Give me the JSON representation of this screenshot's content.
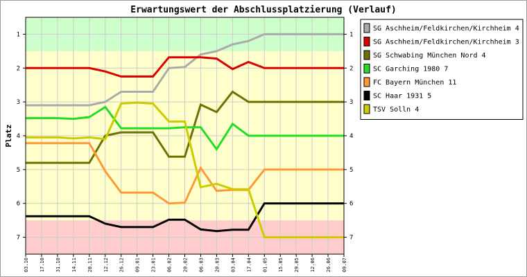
{
  "chart_data": {
    "type": "line",
    "title": "Erwartungswert der Abschlussplatzierung (Verlauf)",
    "xlabel": "",
    "ylabel": "Platz",
    "ylim": [
      0.5,
      7.5
    ],
    "y_inverted": true,
    "y_ticks": [
      "1",
      "2",
      "3",
      "4",
      "5",
      "6",
      "7"
    ],
    "grid": true,
    "legend_position": "right",
    "x": [
      "03.10",
      "17.10",
      "31.10",
      "14.11",
      "28.11",
      "12.12",
      "26.12",
      "09.01",
      "23.01",
      "06.02",
      "20.02",
      "06.03",
      "20.03",
      "03.04",
      "17.04",
      "01.05",
      "15.05",
      "29.05",
      "12.06",
      "26.06",
      "09.07"
    ],
    "bands": [
      {
        "from": 0.5,
        "to": 1.5,
        "color": "#ccffcc"
      },
      {
        "from": 1.5,
        "to": 6.5,
        "color": "#ffffcc"
      },
      {
        "from": 6.5,
        "to": 7.5,
        "color": "#ffcccc"
      }
    ],
    "series": [
      {
        "name": "SG Aschheim/Feldkirchen/Kirchheim 4",
        "color": "#aaaaaa",
        "points": [
          [
            0,
            3.1
          ],
          [
            4,
            3.1
          ],
          [
            5,
            3.0
          ],
          [
            6,
            2.7
          ],
          [
            8,
            2.7
          ],
          [
            9,
            2.0
          ],
          [
            10,
            1.97
          ],
          [
            11,
            1.6
          ],
          [
            12,
            1.5
          ],
          [
            13,
            1.3
          ],
          [
            14,
            1.2
          ],
          [
            15,
            1.0
          ],
          [
            20,
            1.0
          ]
        ]
      },
      {
        "name": "SG Aschheim/Feldkirchen/Kirchheim 3",
        "color": "#dd0000",
        "points": [
          [
            0,
            2.0
          ],
          [
            4,
            2.0
          ],
          [
            5,
            2.1
          ],
          [
            6,
            2.25
          ],
          [
            8,
            2.25
          ],
          [
            9,
            1.68
          ],
          [
            11,
            1.68
          ],
          [
            12,
            1.72
          ],
          [
            13,
            2.03
          ],
          [
            14,
            1.82
          ],
          [
            15,
            2.0
          ],
          [
            20,
            2.0
          ]
        ]
      },
      {
        "name": "SG Schwabing München Nord 4",
        "color": "#707000",
        "points": [
          [
            0,
            4.8
          ],
          [
            4,
            4.8
          ],
          [
            5,
            4.0
          ],
          [
            6,
            3.9
          ],
          [
            8,
            3.9
          ],
          [
            9,
            4.62
          ],
          [
            10,
            4.62
          ],
          [
            11,
            3.08
          ],
          [
            12,
            3.3
          ],
          [
            13,
            2.7
          ],
          [
            14,
            3.0
          ],
          [
            20,
            3.0
          ]
        ]
      },
      {
        "name": "SC Garching 1980 7",
        "color": "#22dd22",
        "points": [
          [
            0,
            3.48
          ],
          [
            2,
            3.48
          ],
          [
            3,
            3.5
          ],
          [
            4,
            3.45
          ],
          [
            5,
            3.15
          ],
          [
            6,
            3.78
          ],
          [
            9,
            3.78
          ],
          [
            10,
            3.75
          ],
          [
            11,
            3.75
          ],
          [
            12,
            4.4
          ],
          [
            13,
            3.65
          ],
          [
            14,
            4.0
          ],
          [
            20,
            4.0
          ]
        ]
      },
      {
        "name": "FC Bayern München 11",
        "color": "#ff9933",
        "points": [
          [
            0,
            4.22
          ],
          [
            4,
            4.22
          ],
          [
            5,
            5.05
          ],
          [
            6,
            5.68
          ],
          [
            8,
            5.68
          ],
          [
            9,
            6.0
          ],
          [
            10,
            5.98
          ],
          [
            11,
            4.95
          ],
          [
            12,
            5.63
          ],
          [
            13,
            5.6
          ],
          [
            14,
            5.6
          ],
          [
            15,
            5.0
          ],
          [
            20,
            5.0
          ]
        ]
      },
      {
        "name": "SC Haar 1931 5",
        "color": "#000000",
        "points": [
          [
            0,
            6.38
          ],
          [
            4,
            6.38
          ],
          [
            5,
            6.6
          ],
          [
            6,
            6.7
          ],
          [
            8,
            6.7
          ],
          [
            9,
            6.48
          ],
          [
            10,
            6.48
          ],
          [
            11,
            6.77
          ],
          [
            12,
            6.82
          ],
          [
            13,
            6.78
          ],
          [
            14,
            6.78
          ],
          [
            15,
            6.0
          ],
          [
            20,
            6.0
          ]
        ]
      },
      {
        "name": "TSV Solln 4",
        "color": "#cccc00",
        "points": [
          [
            0,
            4.05
          ],
          [
            2,
            4.05
          ],
          [
            3,
            4.08
          ],
          [
            4,
            4.05
          ],
          [
            5,
            4.1
          ],
          [
            6,
            3.05
          ],
          [
            7,
            3.02
          ],
          [
            8,
            3.05
          ],
          [
            9,
            3.58
          ],
          [
            10,
            3.58
          ],
          [
            11,
            5.52
          ],
          [
            12,
            5.42
          ],
          [
            13,
            5.58
          ],
          [
            14,
            5.58
          ],
          [
            15,
            7.0
          ],
          [
            20,
            7.0
          ]
        ]
      }
    ]
  }
}
